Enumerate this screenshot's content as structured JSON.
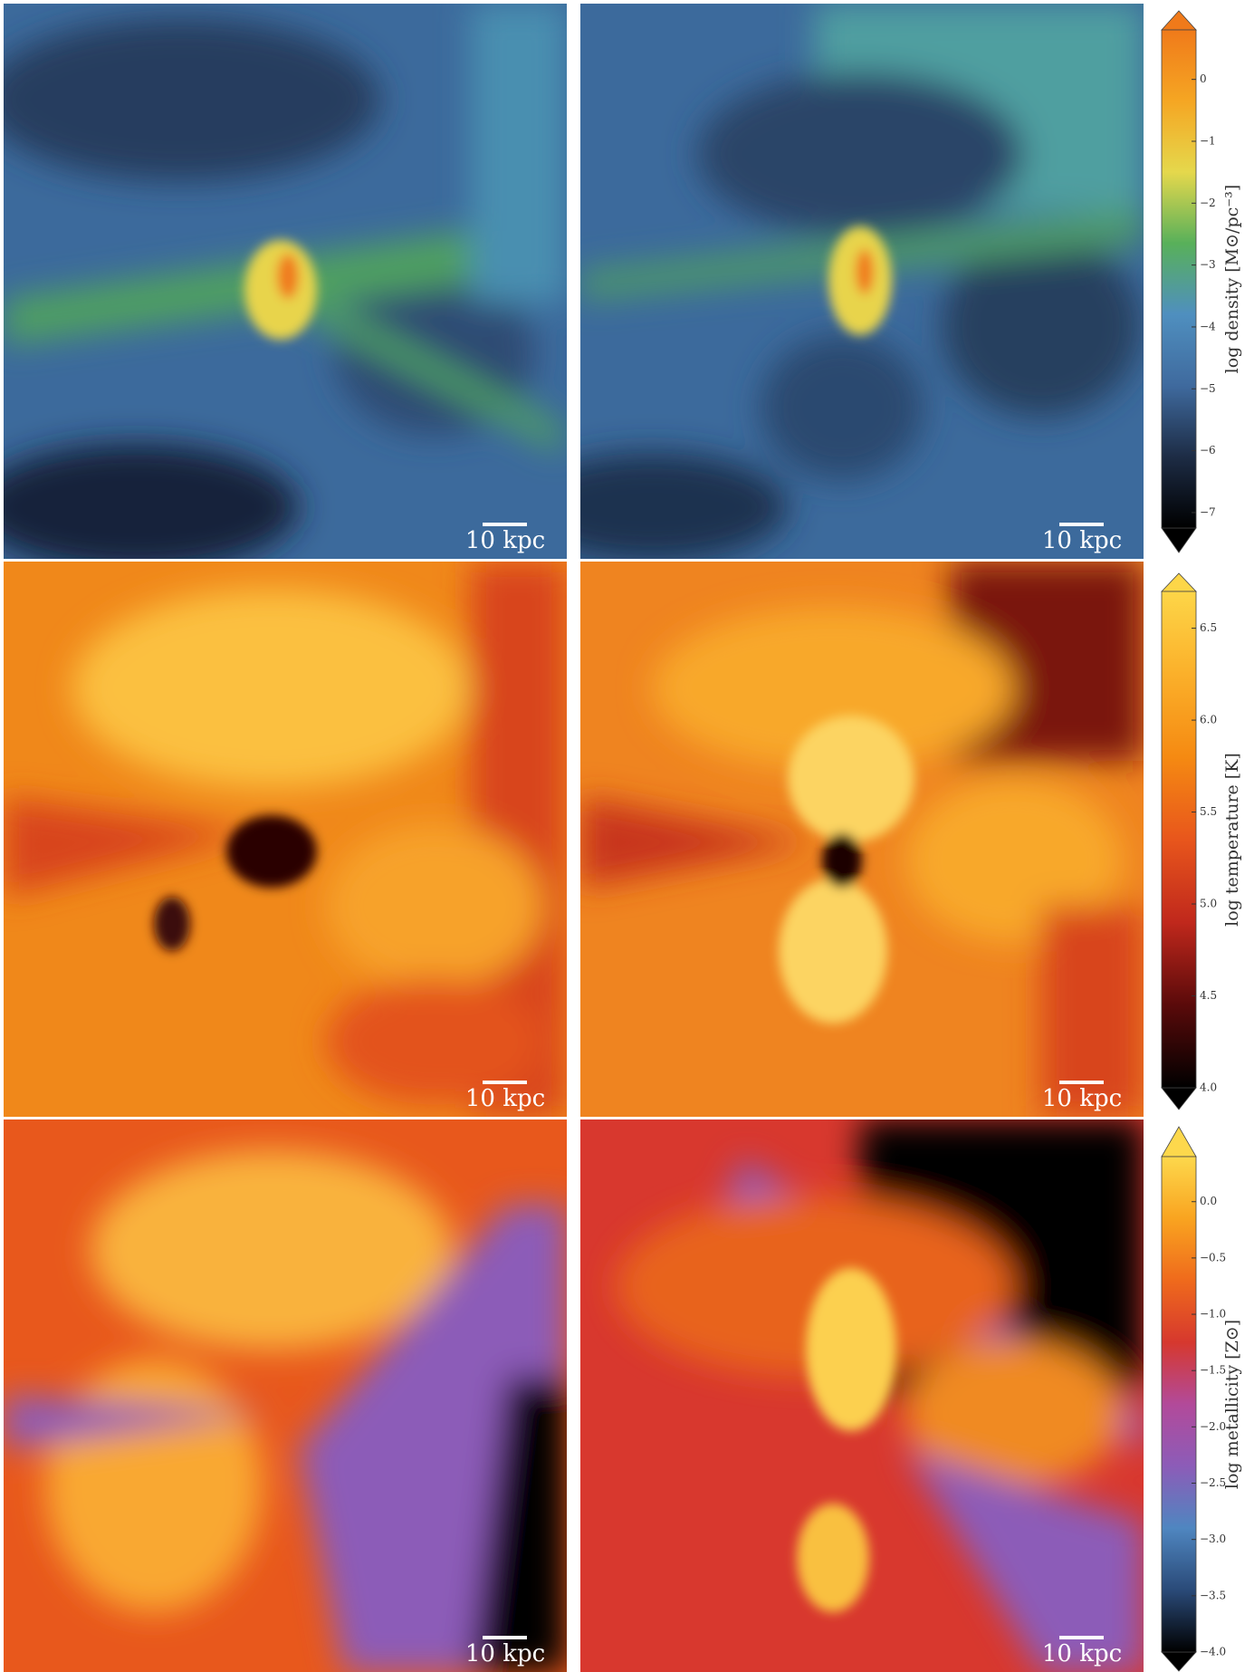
{
  "panels": [
    {
      "scale_label": "10 kpc"
    },
    {
      "scale_label": "10 kpc"
    },
    {
      "scale_label": "10 kpc"
    },
    {
      "scale_label": "10 kpc"
    },
    {
      "scale_label": "10 kpc"
    },
    {
      "scale_label": "10 kpc"
    }
  ],
  "colorbars": [
    {
      "label": "log density [M⊙/pc⁻³]",
      "lim": [
        -7.25,
        0.8
      ],
      "ticks": [
        {
          "value": -7,
          "label": "−7"
        },
        {
          "value": -6,
          "label": "−6"
        },
        {
          "value": -5,
          "label": "−5"
        },
        {
          "value": -4,
          "label": "−4"
        },
        {
          "value": -3,
          "label": "−3"
        },
        {
          "value": -2,
          "label": "−2"
        },
        {
          "value": -1,
          "label": "−1"
        },
        0
      ],
      "colors": [
        "#000000",
        "#1d2c45",
        "#3f6a9e",
        "#4f8fbf",
        "#58b05a",
        "#e5d84c",
        "#f5a623",
        "#f07a1a"
      ]
    },
    {
      "label": "log temperature [K]",
      "lim": [
        4.0,
        6.7
      ],
      "ticks": [
        {
          "value": 4,
          "label": "4.0"
        },
        4.5,
        {
          "value": 5,
          "label": "5.0"
        },
        5.5,
        {
          "value": 6,
          "label": "6.0"
        },
        6.5
      ],
      "colors": [
        "#000000",
        "#5a0a0a",
        "#c0281c",
        "#e8561c",
        "#f58a12",
        "#fbb02a",
        "#fdd648"
      ]
    },
    {
      "label": "log metallicity [Z⊙]",
      "lim": [
        -4.0,
        0.4
      ],
      "ticks": [
        {
          "value": -4,
          "label": "−4.0"
        },
        {
          "value": -3.5,
          "label": "−3.5"
        },
        {
          "value": -3,
          "label": "−3.0"
        },
        {
          "value": -2.5,
          "label": "−2.5"
        },
        {
          "value": -2,
          "label": "−2.0"
        },
        {
          "value": -1.5,
          "label": "−1.5"
        },
        {
          "value": -1,
          "label": "−1.0"
        },
        {
          "value": -0.5,
          "label": "−0.5"
        },
        {
          "value": 0,
          "label": "0.0"
        }
      ],
      "colors": [
        "#000000",
        "#2a4a78",
        "#4f86c0",
        "#8c5cb8",
        "#b24a9a",
        "#d6382e",
        "#ef6a1c",
        "#f9a420",
        "#fdd84c"
      ]
    }
  ]
}
